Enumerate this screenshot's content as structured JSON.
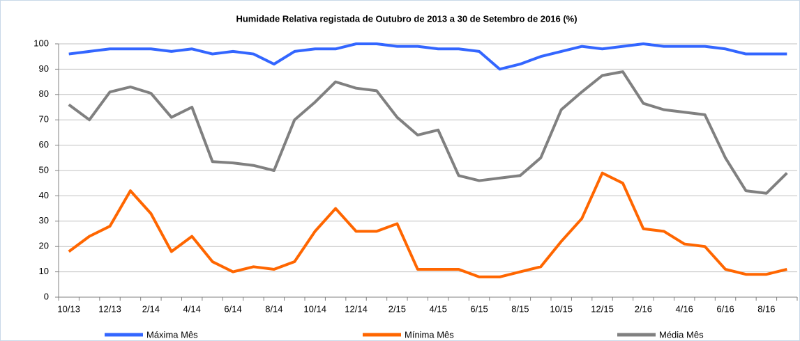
{
  "chart_data": {
    "type": "line",
    "title": "Humidade Relativa  registada de Outubro de 2013 a 30 de Setembro de 2016 (%)",
    "categories": [
      "10/13",
      null,
      "12/13",
      null,
      "2/14",
      null,
      "4/14",
      null,
      "6/14",
      null,
      "8/14",
      null,
      "10/14",
      null,
      "12/14",
      null,
      "2/15",
      null,
      "4/15",
      null,
      "6/15",
      null,
      "8/15",
      null,
      "10/15",
      null,
      "12/15",
      null,
      "2/16",
      null,
      "4/16",
      null,
      "6/16",
      null,
      "8/16",
      null
    ],
    "series": [
      {
        "name": "Máxima Mês",
        "color": "#3366ff",
        "values": [
          96,
          97,
          98,
          98,
          98,
          97,
          98,
          96,
          97,
          96,
          92,
          97,
          98,
          98,
          100,
          100,
          99,
          99,
          98,
          98,
          97,
          90,
          92,
          95,
          97,
          99,
          98,
          99,
          100,
          99,
          99,
          99,
          98,
          96,
          96,
          96
        ]
      },
      {
        "name": "Mínima Mês",
        "color": "#ff6600",
        "values": [
          18,
          24,
          28,
          42,
          33,
          18,
          24,
          14,
          10,
          12,
          11,
          14,
          26,
          35,
          26,
          26,
          29,
          11,
          11,
          11,
          8,
          8,
          10,
          12,
          22,
          31,
          49,
          45,
          27,
          26,
          21,
          20,
          11,
          9,
          9,
          11
        ]
      },
      {
        "name": "Média Mês",
        "color": "#808080",
        "values": [
          76,
          70,
          81,
          83,
          80.5,
          71,
          75,
          53.5,
          53,
          52,
          50,
          70,
          77,
          85,
          82.5,
          81.5,
          71,
          64,
          66,
          48,
          46,
          47,
          48,
          55,
          74,
          81,
          87.5,
          89,
          76.5,
          74,
          73,
          72,
          55,
          42,
          41,
          49
        ]
      }
    ],
    "ylim": [
      0,
      100
    ],
    "yticks": [
      0,
      10,
      20,
      30,
      40,
      50,
      60,
      70,
      80,
      90,
      100
    ],
    "grid": true
  }
}
